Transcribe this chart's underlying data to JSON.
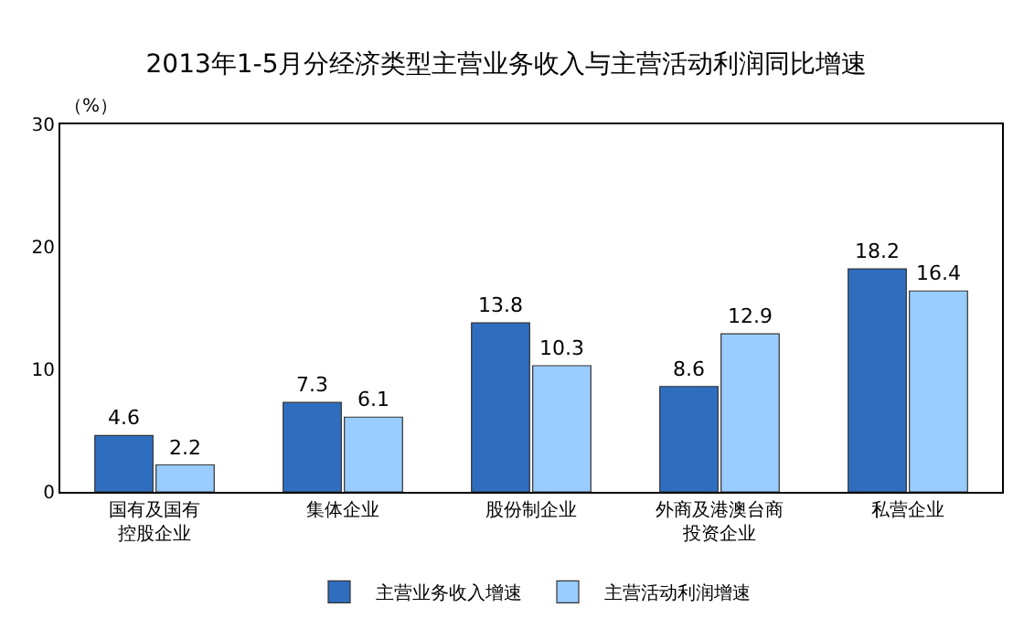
{
  "chart_data": {
    "type": "bar",
    "title": "2013年1-5月分经济类型主营业务收入与主营活动利润同比增速",
    "ylabel": "（%）",
    "categories": [
      "国有及国有控股企业",
      "集体企业",
      "股份制企业",
      "外商及港澳台商投资企业",
      "私营企业"
    ],
    "series": [
      {
        "name": "主营业务收入增速",
        "color": "#2f6ebf",
        "values": [
          4.6,
          7.3,
          13.8,
          8.6,
          18.2
        ]
      },
      {
        "name": "主营活动利润增速",
        "color": "#99ccff",
        "values": [
          2.2,
          6.1,
          10.3,
          12.9,
          16.4
        ]
      }
    ],
    "ylim": [
      0,
      30
    ],
    "yticks": [
      0,
      10,
      20,
      30
    ],
    "grid": false,
    "legend": "bottom",
    "data_labels": true
  }
}
